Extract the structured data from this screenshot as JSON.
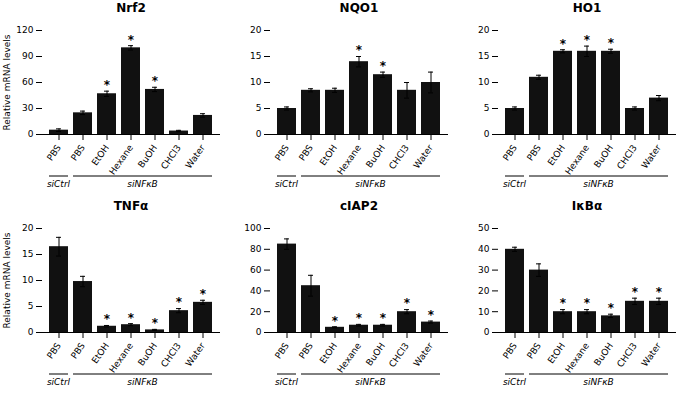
{
  "chart_data": [
    {
      "type": "bar",
      "title": "Nrf2",
      "ylabel": "Relative mRNA levels",
      "categories": [
        "PBS",
        "PBS",
        "EtOH",
        "Hexane",
        "BuOH",
        "CHCl3",
        "Water"
      ],
      "values": [
        5,
        25,
        47,
        100,
        52,
        4,
        22
      ],
      "errors": [
        1.5,
        2,
        3,
        2.5,
        2.5,
        0.8,
        2
      ],
      "significance": [
        null,
        null,
        "*",
        "*",
        "*",
        null,
        null
      ],
      "groups": [
        {
          "name": "siCtrl",
          "size": 1
        },
        {
          "name": "siNFκB",
          "size": 6
        }
      ],
      "color": "#111111",
      "ylim": [
        0,
        120
      ],
      "yticks": [
        0,
        30,
        60,
        90,
        120
      ]
    },
    {
      "type": "bar",
      "title": "NQO1",
      "categories": [
        "PBS",
        "PBS",
        "EtOH",
        "Hexane",
        "BuOH",
        "CHCl3",
        "Water"
      ],
      "values": [
        5,
        8.5,
        8.5,
        14,
        11.5,
        8.5,
        10
      ],
      "errors": [
        0.3,
        0.3,
        0.4,
        1.0,
        0.5,
        1.5,
        2.0
      ],
      "significance": [
        null,
        null,
        null,
        "*",
        "*",
        null,
        null
      ],
      "groups": [
        {
          "name": "siCtrl",
          "size": 1
        },
        {
          "name": "siNFκB",
          "size": 6
        }
      ],
      "color": "#111111",
      "ylim": [
        0,
        20
      ],
      "yticks": [
        0,
        5,
        10,
        15,
        20
      ]
    },
    {
      "type": "bar",
      "title": "HO1",
      "categories": [
        "PBS",
        "PBS",
        "EtOH",
        "Hexane",
        "BuOH",
        "CHCl3",
        "Water"
      ],
      "values": [
        5,
        11,
        16,
        16,
        16,
        5,
        7
      ],
      "errors": [
        0.3,
        0.4,
        0.3,
        1.0,
        0.4,
        0.3,
        0.5
      ],
      "significance": [
        null,
        null,
        "*",
        "*",
        "*",
        null,
        null
      ],
      "groups": [
        {
          "name": "siCtrl",
          "size": 1
        },
        {
          "name": "siNFκB",
          "size": 6
        }
      ],
      "color": "#111111",
      "ylim": [
        0,
        20
      ],
      "yticks": [
        0,
        5,
        10,
        15,
        20
      ]
    },
    {
      "type": "bar",
      "title": "TNFα",
      "ylabel": "Relative mRNA levels",
      "categories": [
        "PBS",
        "PBS",
        "EtOH",
        "Hexane",
        "BuOH",
        "CHCl3",
        "Water"
      ],
      "values": [
        16.5,
        9.8,
        1.2,
        1.5,
        0.5,
        4.2,
        5.8
      ],
      "errors": [
        1.8,
        1.0,
        0.15,
        0.2,
        0.1,
        0.4,
        0.4
      ],
      "significance": [
        null,
        null,
        "*",
        "*",
        "*",
        "*",
        "*"
      ],
      "groups": [
        {
          "name": "siCtrl",
          "size": 1
        },
        {
          "name": "siNFκB",
          "size": 6
        }
      ],
      "color": "#111111",
      "ylim": [
        0,
        20
      ],
      "yticks": [
        0,
        5,
        10,
        15,
        20
      ]
    },
    {
      "type": "bar",
      "title": "cIAP2",
      "categories": [
        "PBS",
        "PBS",
        "EtOH",
        "Hexane",
        "BuOH",
        "CHCl3",
        "Water"
      ],
      "values": [
        85,
        45,
        5,
        7,
        7,
        20,
        10
      ],
      "errors": [
        5,
        10,
        0.5,
        0.8,
        0.8,
        2,
        1
      ],
      "significance": [
        null,
        null,
        "*",
        "*",
        "*",
        "*",
        "*"
      ],
      "groups": [
        {
          "name": "siCtrl",
          "size": 1
        },
        {
          "name": "siNFκB",
          "size": 6
        }
      ],
      "color": "#111111",
      "ylim": [
        0,
        100
      ],
      "yticks": [
        0,
        20,
        40,
        60,
        80,
        100
      ]
    },
    {
      "type": "bar",
      "title": "IκBα",
      "categories": [
        "PBS",
        "PBS",
        "EtOH",
        "Hexane",
        "BuOH",
        "CHCl3",
        "Water"
      ],
      "values": [
        40,
        30,
        10,
        10,
        8,
        15,
        15
      ],
      "errors": [
        1,
        3,
        1,
        1,
        0.8,
        1.5,
        1.5
      ],
      "significance": [
        null,
        null,
        "*",
        "*",
        "*",
        "*",
        "*"
      ],
      "groups": [
        {
          "name": "siCtrl",
          "size": 1
        },
        {
          "name": "siNFκB",
          "size": 6
        }
      ],
      "color": "#111111",
      "ylim": [
        0,
        50
      ],
      "yticks": [
        0,
        10,
        20,
        30,
        40,
        50
      ]
    }
  ]
}
